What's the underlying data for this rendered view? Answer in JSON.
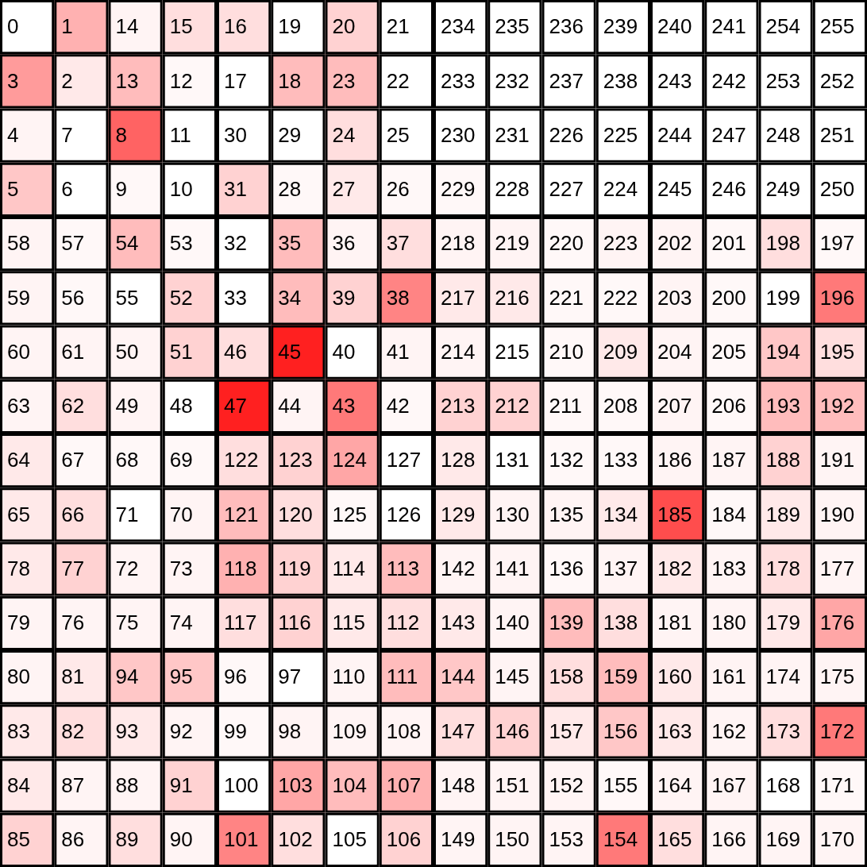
{
  "chart_data": {
    "type": "heatmap",
    "tick_labels": false,
    "data_labels": true,
    "categories": [
      null,
      null,
      null,
      null,
      null,
      null,
      null,
      null,
      null,
      null,
      null,
      null,
      null,
      null,
      null,
      null
    ],
    "y_categories": [
      null,
      null,
      null,
      null,
      null,
      null,
      null,
      null,
      null,
      null,
      null,
      null,
      null,
      null,
      null,
      null
    ],
    "cells": [
      [
        0,
        1,
        14,
        15,
        16,
        19,
        20,
        21,
        234,
        235,
        236,
        239,
        240,
        241,
        254,
        255
      ],
      [
        3,
        2,
        13,
        12,
        17,
        18,
        23,
        22,
        233,
        232,
        237,
        238,
        243,
        242,
        253,
        252
      ],
      [
        4,
        7,
        8,
        11,
        30,
        29,
        24,
        25,
        230,
        231,
        226,
        225,
        244,
        247,
        248,
        251
      ],
      [
        5,
        6,
        9,
        10,
        31,
        28,
        27,
        26,
        229,
        228,
        227,
        224,
        245,
        246,
        249,
        250
      ],
      [
        58,
        57,
        54,
        53,
        32,
        35,
        36,
        37,
        218,
        219,
        220,
        223,
        202,
        201,
        198,
        197
      ],
      [
        59,
        56,
        55,
        52,
        33,
        34,
        39,
        38,
        217,
        216,
        221,
        222,
        203,
        200,
        199,
        196
      ],
      [
        60,
        61,
        50,
        51,
        46,
        45,
        40,
        41,
        214,
        215,
        210,
        209,
        204,
        205,
        194,
        195
      ],
      [
        63,
        62,
        49,
        48,
        47,
        44,
        43,
        42,
        213,
        212,
        211,
        208,
        207,
        206,
        193,
        192
      ],
      [
        64,
        67,
        68,
        69,
        122,
        123,
        124,
        127,
        128,
        131,
        132,
        133,
        186,
        187,
        188,
        191
      ],
      [
        65,
        66,
        71,
        70,
        121,
        120,
        125,
        126,
        129,
        130,
        135,
        134,
        185,
        184,
        189,
        190
      ],
      [
        78,
        77,
        72,
        73,
        118,
        119,
        114,
        113,
        142,
        141,
        136,
        137,
        182,
        183,
        178,
        177
      ],
      [
        79,
        76,
        75,
        74,
        117,
        116,
        115,
        112,
        143,
        140,
        139,
        138,
        181,
        180,
        179,
        176
      ],
      [
        80,
        81,
        94,
        95,
        96,
        97,
        110,
        111,
        144,
        145,
        158,
        159,
        160,
        161,
        174,
        175
      ],
      [
        83,
        82,
        93,
        92,
        99,
        98,
        109,
        108,
        147,
        146,
        157,
        156,
        163,
        162,
        173,
        172
      ],
      [
        84,
        87,
        88,
        91,
        100,
        103,
        104,
        107,
        148,
        151,
        152,
        155,
        164,
        167,
        168,
        171
      ],
      [
        85,
        86,
        89,
        90,
        101,
        102,
        105,
        106,
        149,
        150,
        153,
        154,
        165,
        166,
        169,
        170
      ]
    ],
    "colors": [
      [
        "#ffffff",
        "#ffb1b1",
        "#fff4f4",
        "#ffdede",
        "#ffdede",
        "#ffffff",
        "#ffd2d2",
        "#ffffff",
        "#ffffff",
        "#ffffff",
        "#ffffff",
        "#ffffff",
        "#ffffff",
        "#ffffff",
        "#ffffff",
        "#ffffff"
      ],
      [
        "#ff9b9b",
        "#ffe9e9",
        "#ffbcbc",
        "#fff8f8",
        "#ffffff",
        "#ffbcbc",
        "#ffbcbc",
        "#ffffff",
        "#ffffff",
        "#ffffff",
        "#ffffff",
        "#ffffff",
        "#ffffff",
        "#ffffff",
        "#ffffff",
        "#ffffff"
      ],
      [
        "#fff4f4",
        "#ffffff",
        "#ff6363",
        "#ffffff",
        "#ffffff",
        "#ffffff",
        "#ffdede",
        "#ffffff",
        "#ffffff",
        "#ffffff",
        "#ffffff",
        "#ffffff",
        "#ffffff",
        "#ffffff",
        "#ffffff",
        "#ffffff"
      ],
      [
        "#ffc7c7",
        "#ffffff",
        "#fff8f8",
        "#ffffff",
        "#ffd2d2",
        "#fff8f8",
        "#ffe9e9",
        "#fff8f8",
        "#fff8f8",
        "#ffffff",
        "#ffffff",
        "#ffffff",
        "#ffffff",
        "#ffffff",
        "#ffffff",
        "#ffffff"
      ],
      [
        "#fff4f4",
        "#fff8f8",
        "#ffbcbc",
        "#fff8f8",
        "#ffffff",
        "#ffbcbc",
        "#fff4f4",
        "#ffdede",
        "#fff4f4",
        "#fff4f4",
        "#fff8f8",
        "#fff4f4",
        "#fff4f4",
        "#fff8f8",
        "#ffdede",
        "#fff8f8"
      ],
      [
        "#fff4f4",
        "#fff8f8",
        "#ffffff",
        "#ffd2d2",
        "#ffffff",
        "#ffbcbc",
        "#ffd2d2",
        "#ff8484",
        "#ffe9e9",
        "#ffe9e9",
        "#fff8f8",
        "#fff8f8",
        "#fff4f4",
        "#fff8f8",
        "#ffffff",
        "#ff7979"
      ],
      [
        "#fff4f4",
        "#fff4f4",
        "#fff4f4",
        "#ffd2d2",
        "#ffdede",
        "#ff2020",
        "#ffffff",
        "#fff4f4",
        "#fff4f4",
        "#ffffff",
        "#fff8f8",
        "#ffe9e9",
        "#fff4f4",
        "#fff8f8",
        "#ffc7c7",
        "#ffdede"
      ],
      [
        "#fff4f4",
        "#ffdede",
        "#fff4f4",
        "#ffffff",
        "#ff2020",
        "#fff4f4",
        "#ff7979",
        "#fff8f8",
        "#ffd2d2",
        "#ffd2d2",
        "#fff8f8",
        "#fff8f8",
        "#fff4f4",
        "#fff8f8",
        "#ffbcbc",
        "#ffbcbc"
      ],
      [
        "#ffe9e9",
        "#fff8f8",
        "#fff8f8",
        "#fff8f8",
        "#ffdede",
        "#ffd2d2",
        "#ffa6a6",
        "#ffffff",
        "#ffe9e9",
        "#ffffff",
        "#fff8f8",
        "#fff8f8",
        "#fff4f4",
        "#fff4f4",
        "#ffd2d2",
        "#fff4f4"
      ],
      [
        "#ffe9e9",
        "#ffdede",
        "#ffffff",
        "#fff4f4",
        "#ffbcbc",
        "#ffdede",
        "#fff8f8",
        "#ffffff",
        "#ffe9e9",
        "#fff4f4",
        "#fff4f4",
        "#ffe9e9",
        "#ff4d4d",
        "#fff8f8",
        "#ffe9e9",
        "#fff4f4"
      ],
      [
        "#ffe9e9",
        "#ffd2d2",
        "#fff4f4",
        "#fff4f4",
        "#ffb1b1",
        "#ffd2d2",
        "#ffe9e9",
        "#ffbcbc",
        "#fff4f4",
        "#fff4f4",
        "#fff8f8",
        "#fff4f4",
        "#ffe9e9",
        "#fff4f4",
        "#ffdede",
        "#fff4f4"
      ],
      [
        "#fff4f4",
        "#fff4f4",
        "#fff4f4",
        "#fff4f4",
        "#ffdede",
        "#ffd2d2",
        "#ffe9e9",
        "#ffdede",
        "#ffe9e9",
        "#fff4f4",
        "#ffbcbc",
        "#ffdede",
        "#fff4f4",
        "#fff4f4",
        "#ffe9e9",
        "#ffa6a6"
      ],
      [
        "#fff4f4",
        "#ffe9e9",
        "#ffc7c7",
        "#ffc7c7",
        "#fff8f8",
        "#ffffff",
        "#fff4f4",
        "#ffbcbc",
        "#ffc7c7",
        "#fff4f4",
        "#ffdede",
        "#ffbcbc",
        "#ffe9e9",
        "#fff4f4",
        "#fff4f4",
        "#fff4f4"
      ],
      [
        "#ffe9e9",
        "#ffdede",
        "#ffe9e9",
        "#fff4f4",
        "#fff8f8",
        "#fff4f4",
        "#fff4f4",
        "#fff4f4",
        "#ffdede",
        "#ffd2d2",
        "#ffe9e9",
        "#ffc7c7",
        "#ffe9e9",
        "#fff4f4",
        "#ffdede",
        "#ff7979"
      ],
      [
        "#ffe9e9",
        "#fff4f4",
        "#fff4f4",
        "#ffd2d2",
        "#ffffff",
        "#ffa6a6",
        "#ffbcbc",
        "#ffb1b1",
        "#fff4f4",
        "#fff4f4",
        "#fff4f4",
        "#fff8f8",
        "#fff4f4",
        "#fff4f4",
        "#ffffff",
        "#fff8f8"
      ],
      [
        "#ffd2d2",
        "#fff4f4",
        "#ffdede",
        "#fff4f4",
        "#ff8484",
        "#ffdede",
        "#ffffff",
        "#ffd2d2",
        "#fff4f4",
        "#fff4f4",
        "#fff4f4",
        "#ff7979",
        "#ffdede",
        "#fff4f4",
        "#fff4f4",
        "#fff4f4"
      ]
    ]
  }
}
